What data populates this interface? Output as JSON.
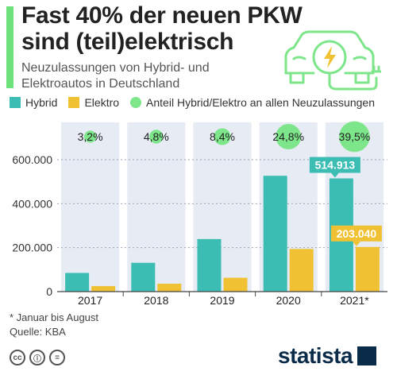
{
  "header": {
    "title_line1": "Fast 40% der neuen PKW",
    "title_line2": "sind (teil)elektrisch",
    "subtitle_line1": "Neuzulassungen von Hybrid- und",
    "subtitle_line2": "Elektroautos in Deutschland"
  },
  "colors": {
    "accent": "#6ee27a",
    "hybrid": "#3bbdb4",
    "elektro": "#f0c233",
    "share": "#7de58a",
    "column_bg": "#e7ebf4",
    "brand": "#0b2b4a"
  },
  "legend": {
    "hybrid": "Hybrid",
    "elektro": "Elektro",
    "share": "Anteil Hybrid/Elektro an allen Neuzulassungen"
  },
  "chart_data": {
    "type": "bar",
    "categories": [
      "2017",
      "2018",
      "2019",
      "2020",
      "2021*"
    ],
    "series": [
      {
        "name": "Hybrid",
        "values": [
          85000,
          131000,
          239000,
          527000,
          514913
        ]
      },
      {
        "name": "Elektro",
        "values": [
          25000,
          36000,
          63000,
          194000,
          203040
        ]
      }
    ],
    "share_labels": [
      "3,2%",
      "4,8%",
      "8,4%",
      "24,8%",
      "39,5%"
    ],
    "share_values": [
      3.2,
      4.8,
      8.4,
      24.8,
      39.5
    ],
    "data_labels": {
      "hybrid_2021": "514.913",
      "elektro_2021": "203.040"
    },
    "yticks": [
      0,
      200000,
      400000,
      600000
    ],
    "ytick_labels": [
      "0",
      "200.000",
      "400.000",
      "600.000"
    ],
    "ylim": [
      0,
      600000
    ]
  },
  "footnote": {
    "line1": "* Januar bis August",
    "line2": "Quelle: KBA"
  },
  "brand": {
    "name": "statista"
  }
}
